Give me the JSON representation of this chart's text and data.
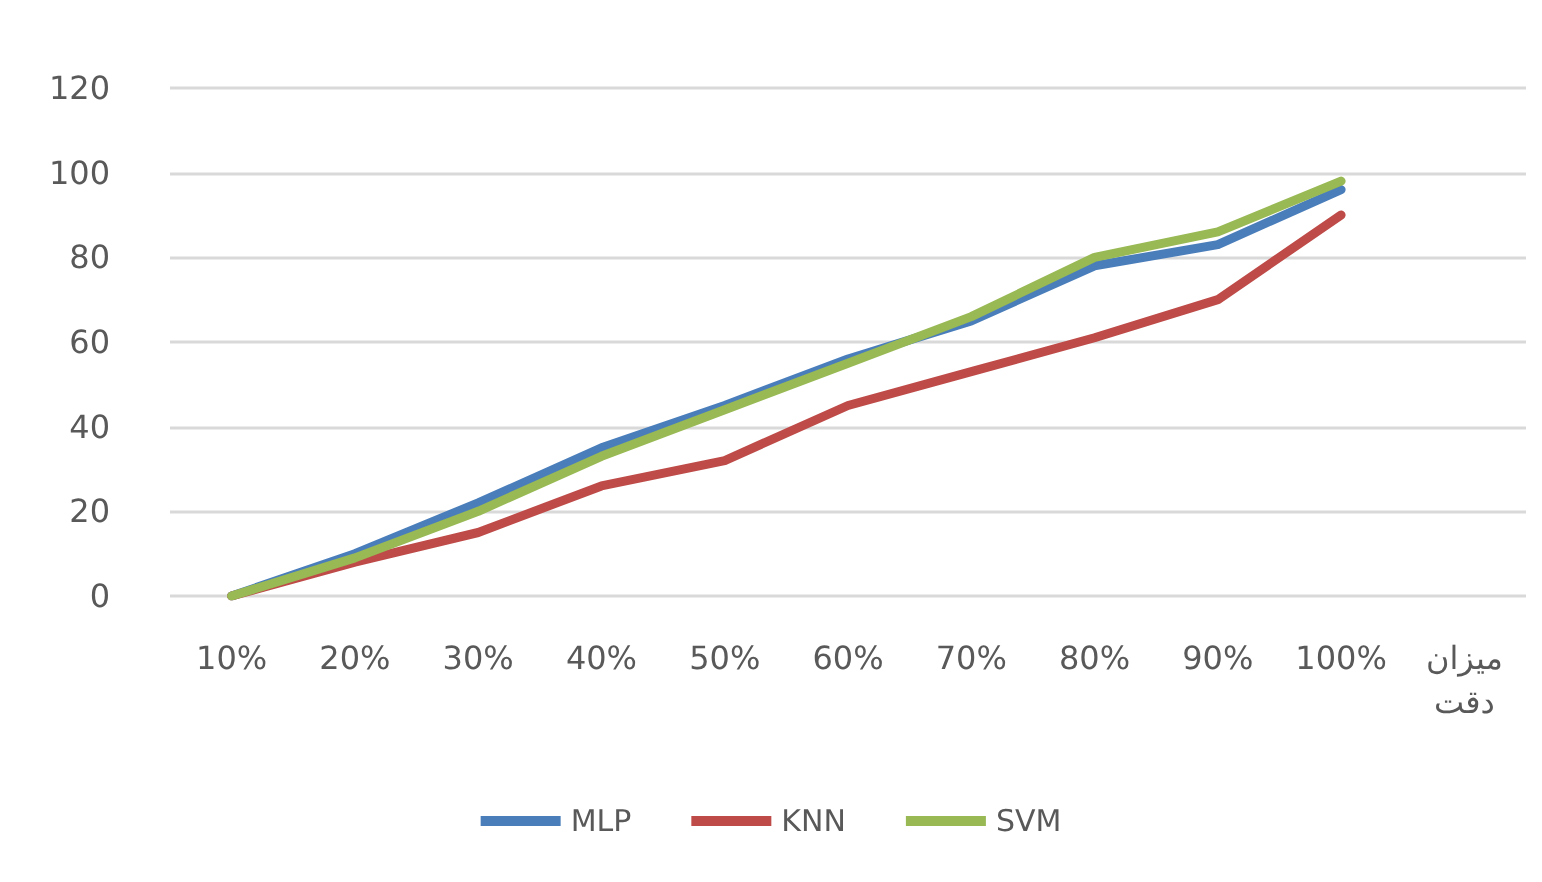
{
  "chart_data": {
    "type": "line",
    "categories": [
      "10%",
      "20%",
      "30%",
      "40%",
      "50%",
      "60%",
      "70%",
      "80%",
      "90%",
      "100%",
      "میزان دقت"
    ],
    "series": [
      {
        "name": "MLP",
        "color": "#4a7ebb",
        "values": [
          0,
          10,
          22,
          35,
          45,
          56,
          65,
          78,
          83,
          96,
          null
        ]
      },
      {
        "name": "KNN",
        "color": "#be4b48",
        "values": [
          0,
          8,
          15,
          26,
          32,
          45,
          53,
          61,
          70,
          90,
          null
        ]
      },
      {
        "name": "SVM",
        "color": "#98b954",
        "values": [
          0,
          9,
          20,
          33,
          44,
          55,
          66,
          80,
          86,
          98,
          null
        ]
      }
    ],
    "ylim": [
      0,
      120
    ],
    "yticks": [
      0,
      20,
      40,
      60,
      80,
      100,
      120
    ],
    "grid": "y",
    "legend": "bottom",
    "marker": "none",
    "line_style": "solid"
  }
}
